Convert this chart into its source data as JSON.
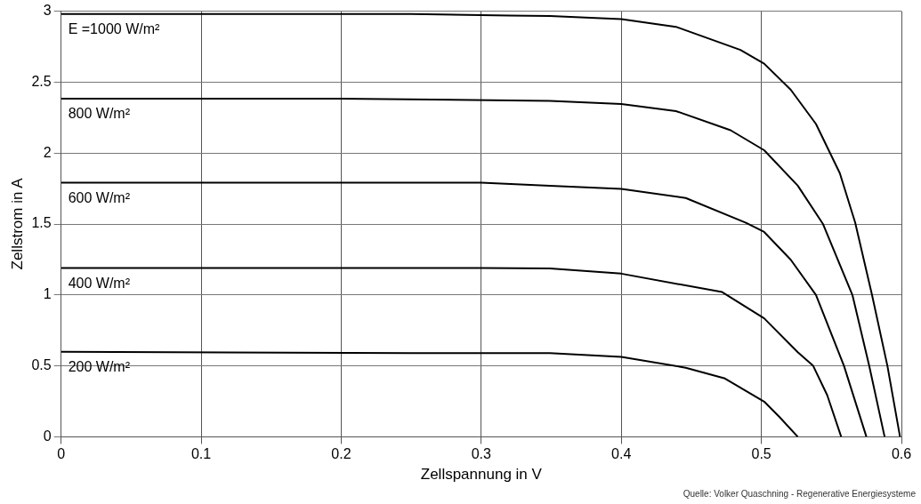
{
  "chart_data": {
    "type": "line",
    "xlabel": "Zellspannung in V",
    "ylabel": "Zellstrom in A",
    "xlim": [
      0,
      0.6
    ],
    "xticks": [
      0,
      0.1,
      0.2,
      0.3,
      0.4,
      0.5,
      0.6
    ],
    "ylim": [
      0,
      3
    ],
    "yticks": [
      0,
      0.5,
      1,
      1.5,
      2,
      2.5,
      3
    ],
    "grid": true,
    "legend": false,
    "marker": "none",
    "line_style": "solid",
    "series": [
      {
        "name": "E =1000 W/m²",
        "color": "#000000",
        "x": [
          0,
          0.25,
          0.32,
          0.349,
          0.4,
          0.439,
          0.485,
          0.502,
          0.521,
          0.539,
          0.556,
          0.567,
          0.579,
          0.59,
          0.599
        ],
        "values": [
          2.98,
          2.98,
          2.97,
          2.966,
          2.944,
          2.89,
          2.727,
          2.63,
          2.446,
          2.205,
          1.859,
          1.509,
          1.0,
          0.5,
          0
        ]
      },
      {
        "name": "800 W/m²",
        "color": "#000000",
        "x": [
          0,
          0.2,
          0.349,
          0.4,
          0.439,
          0.478,
          0.502,
          0.526,
          0.544,
          0.565,
          0.577,
          0.588
        ],
        "values": [
          2.383,
          2.383,
          2.368,
          2.346,
          2.296,
          2.161,
          2.02,
          1.77,
          1.5,
          1.0,
          0.5,
          0
        ]
      },
      {
        "name": "600 W/m²",
        "color": "#000000",
        "x": [
          0,
          0.3,
          0.349,
          0.4,
          0.446,
          0.489,
          0.502,
          0.521,
          0.539,
          0.559,
          0.575
        ],
        "values": [
          1.792,
          1.792,
          1.77,
          1.748,
          1.683,
          1.509,
          1.444,
          1.248,
          1.0,
          0.5,
          0
        ]
      },
      {
        "name": "400 W/m²",
        "color": "#000000",
        "x": [
          0,
          0.3,
          0.349,
          0.4,
          0.472,
          0.502,
          0.526,
          0.537,
          0.547,
          0.557
        ],
        "values": [
          1.19,
          1.19,
          1.187,
          1.15,
          1.02,
          0.835,
          0.596,
          0.5,
          0.294,
          0
        ]
      },
      {
        "name": "200 W/m²",
        "color": "#000000",
        "x": [
          0,
          0.25,
          0.349,
          0.4,
          0.446,
          0.474,
          0.502,
          0.513,
          0.526
        ],
        "values": [
          0.6,
          0.59,
          0.59,
          0.563,
          0.487,
          0.411,
          0.248,
          0.139,
          0
        ]
      }
    ],
    "annotations": [
      "Quelle: Volker Quaschning - Regenerative Energiesysteme"
    ]
  }
}
